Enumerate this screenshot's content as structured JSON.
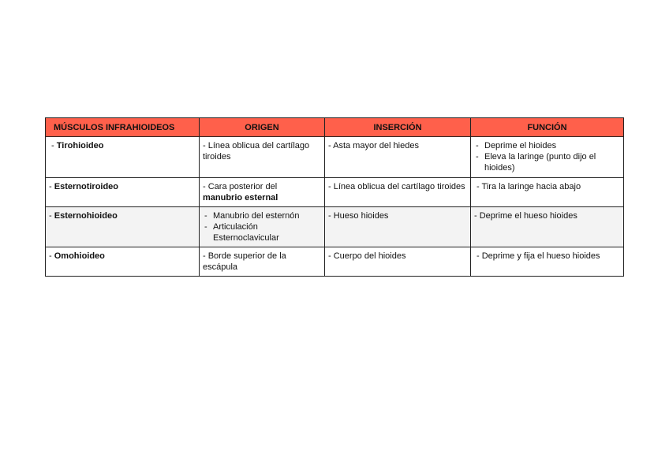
{
  "header": {
    "col1": "MÚSCULOS INFRAHIOIDEOS",
    "col2": "ORIGEN",
    "col3": "INSERCIÓN",
    "col4": "FUNCIÓN"
  },
  "colors": {
    "header_bg": "#ff604b",
    "alt_row_bg": "#f3f3f3"
  },
  "rows": [
    {
      "muscle": "Tirohioideo",
      "origin": "- Línea oblicua del cartílago tiroides",
      "insertion": "- Asta mayor del hiedes",
      "function": [
        "Deprime el hioides",
        "Eleva la laringe (punto dijo el hioides)"
      ]
    },
    {
      "muscle": "Esternotiroideo",
      "origin_prefix": "- Cara posterior del",
      "origin_bold": "manubrio esternal",
      "insertion": "- Línea oblicua del cartílago tiroides",
      "function": "- Tira la laringe hacia abajo"
    },
    {
      "muscle": "Esternohioideo",
      "origin": [
        "Manubrio del esternón",
        "Articulación Esternoclavicular"
      ],
      "insertion": "- Hueso hioides",
      "function": "- Deprime el hueso hioides"
    },
    {
      "muscle": "Omohioideo",
      "origin": "- Borde superior de la escápula",
      "insertion": "- Cuerpo del hioides",
      "function": "- Deprime y fija el hueso hioides"
    }
  ]
}
